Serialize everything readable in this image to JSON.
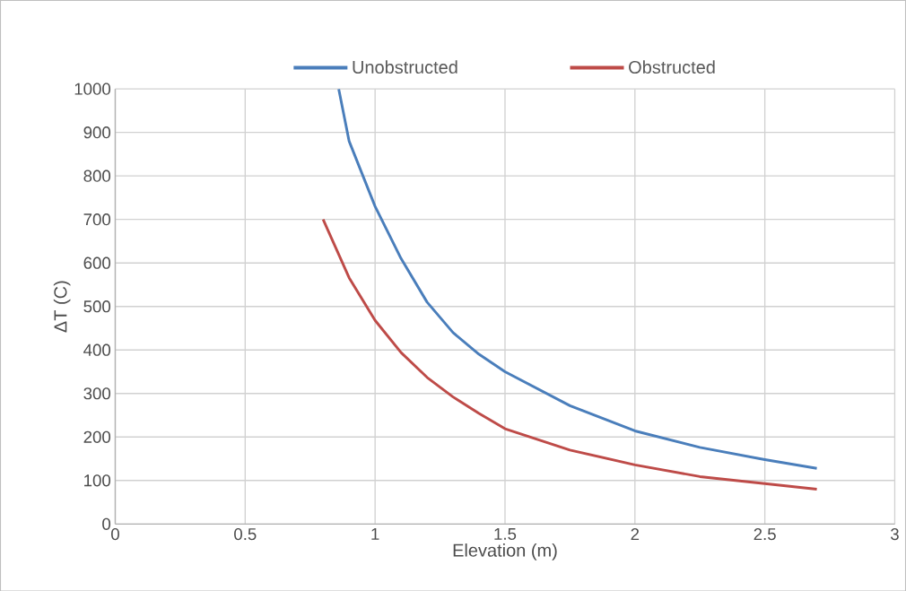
{
  "chart_data": {
    "type": "line",
    "xlabel": "Elevation (m)",
    "ylabel": "ΔT (C)",
    "xlim": [
      0,
      3
    ],
    "ylim": [
      0,
      1000
    ],
    "xticks": [
      0,
      0.5,
      1,
      1.5,
      2,
      2.5,
      3
    ],
    "yticks": [
      0,
      100,
      200,
      300,
      400,
      500,
      600,
      700,
      800,
      900,
      1000
    ],
    "grid": true,
    "legend": "top",
    "marker": "none",
    "line_style": "solid",
    "series": [
      {
        "name": "Unobstructed",
        "color": "#4a7ebb",
        "x": [
          0.86,
          0.9,
          1.0,
          1.1,
          1.2,
          1.3,
          1.4,
          1.5,
          1.75,
          2.0,
          2.25,
          2.5,
          2.7
        ],
        "values": [
          1000,
          880,
          730,
          610,
          510,
          440,
          390,
          350,
          272,
          214,
          176,
          148,
          128
        ]
      },
      {
        "name": "Obstructed",
        "color": "#be4b48",
        "x": [
          0.8,
          0.9,
          1.0,
          1.1,
          1.2,
          1.3,
          1.4,
          1.5,
          1.75,
          2.0,
          2.25,
          2.5,
          2.7
        ],
        "values": [
          700,
          566,
          468,
          394,
          337,
          292,
          254,
          219,
          170,
          136,
          109,
          93,
          80
        ]
      }
    ]
  }
}
